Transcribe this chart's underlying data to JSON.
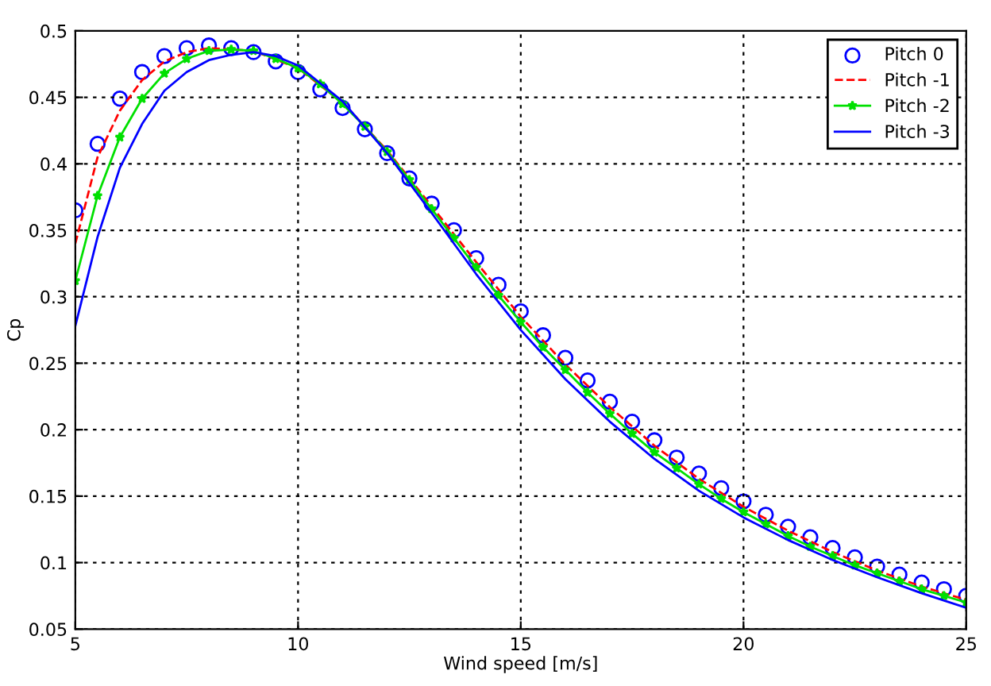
{
  "chart_data": {
    "type": "line",
    "xlabel": "Wind speed [m/s]",
    "ylabel": "Cp",
    "xlim": [
      5,
      25
    ],
    "xticks": [
      5,
      10,
      15,
      20,
      25
    ],
    "ylim": [
      0.05,
      0.5
    ],
    "yticks": [
      0.05,
      0.1,
      0.15,
      0.2,
      0.25,
      0.3,
      0.35,
      0.4,
      0.45,
      0.5
    ],
    "grid": true,
    "legend": "top right",
    "series": [
      {
        "name": "Pitch 0",
        "type": "scatter",
        "marker": "circle",
        "color": "#0000ff",
        "x": [
          5,
          5.5,
          6,
          6.5,
          7,
          7.5,
          8,
          8.5,
          9,
          9.5,
          10,
          10.5,
          11,
          11.5,
          12,
          12.5,
          13,
          13.5,
          14,
          14.5,
          15,
          15.5,
          16,
          16.5,
          17,
          17.5,
          18,
          18.5,
          19,
          19.5,
          20,
          20.5,
          21,
          21.5,
          22,
          22.5,
          23,
          23.5,
          24,
          24.5,
          25
        ],
        "values": [
          0.365,
          0.415,
          0.449,
          0.469,
          0.481,
          0.487,
          0.489,
          0.487,
          0.484,
          0.477,
          0.469,
          0.456,
          0.442,
          0.426,
          0.408,
          0.389,
          0.37,
          0.35,
          0.329,
          0.309,
          0.289,
          0.271,
          0.254,
          0.237,
          0.221,
          0.206,
          0.192,
          0.179,
          0.167,
          0.156,
          0.146,
          0.136,
          0.127,
          0.119,
          0.111,
          0.104,
          0.097,
          0.091,
          0.085,
          0.08,
          0.075
        ]
      },
      {
        "name": "Pitch -1",
        "line_style": "dashed",
        "color": "#ff0000",
        "x": [
          5,
          5.5,
          6,
          6.5,
          7,
          7.5,
          8,
          9,
          10,
          11,
          12,
          13,
          14,
          15,
          16,
          17,
          18,
          19,
          20,
          21,
          22,
          23,
          24,
          25
        ],
        "values": [
          0.34,
          0.405,
          0.44,
          0.463,
          0.477,
          0.484,
          0.487,
          0.485,
          0.472,
          0.446,
          0.41,
          0.368,
          0.326,
          0.285,
          0.249,
          0.217,
          0.188,
          0.163,
          0.142,
          0.124,
          0.108,
          0.094,
          0.082,
          0.072
        ]
      },
      {
        "name": "Pitch -2",
        "marker": "star",
        "color": "#00e000",
        "x": [
          5,
          5.5,
          6,
          6.5,
          7,
          7.5,
          8,
          8.5,
          9,
          9.5,
          10,
          10.5,
          11,
          11.5,
          12,
          12.5,
          13,
          13.5,
          14,
          14.5,
          15,
          15.5,
          16,
          16.5,
          17,
          17.5,
          18,
          18.5,
          19,
          19.5,
          20,
          20.5,
          21,
          21.5,
          22,
          22.5,
          23,
          23.5,
          24,
          24.5,
          25
        ],
        "values": [
          0.312,
          0.376,
          0.42,
          0.449,
          0.468,
          0.479,
          0.485,
          0.486,
          0.485,
          0.479,
          0.472,
          0.46,
          0.445,
          0.428,
          0.409,
          0.388,
          0.366,
          0.344,
          0.322,
          0.301,
          0.281,
          0.262,
          0.245,
          0.228,
          0.212,
          0.197,
          0.183,
          0.171,
          0.159,
          0.148,
          0.138,
          0.129,
          0.12,
          0.112,
          0.105,
          0.098,
          0.092,
          0.086,
          0.08,
          0.075,
          0.07
        ]
      },
      {
        "name": "Pitch -3",
        "line_style": "solid",
        "color": "#0000ff",
        "x": [
          5,
          5.5,
          6,
          6.5,
          7,
          7.5,
          8,
          8.5,
          9,
          9.5,
          10,
          11,
          12,
          13,
          14,
          15,
          16,
          17,
          18,
          19,
          20,
          21,
          22,
          23,
          24,
          25
        ],
        "values": [
          0.278,
          0.345,
          0.397,
          0.43,
          0.455,
          0.469,
          0.478,
          0.482,
          0.484,
          0.481,
          0.474,
          0.447,
          0.408,
          0.363,
          0.317,
          0.275,
          0.238,
          0.206,
          0.178,
          0.154,
          0.134,
          0.117,
          0.102,
          0.089,
          0.077,
          0.066
        ]
      }
    ]
  }
}
